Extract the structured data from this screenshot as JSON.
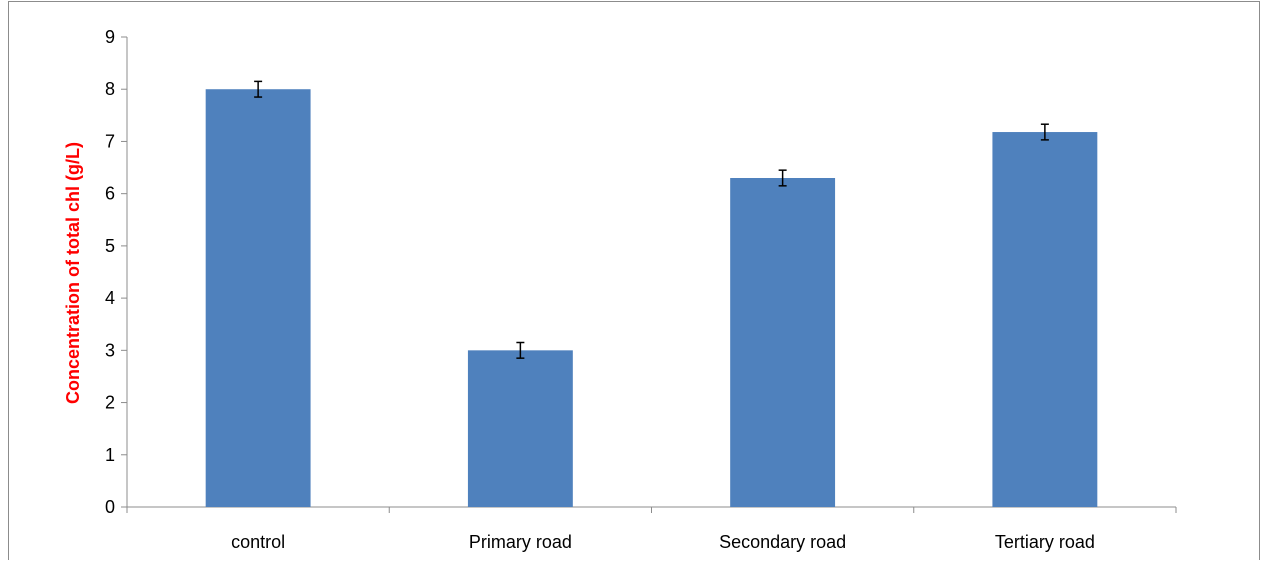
{
  "chart_data": {
    "type": "bar",
    "categories": [
      "control",
      "Primary road",
      "Secondary road",
      "Tertiary road"
    ],
    "values": [
      8.0,
      3.0,
      6.3,
      7.18
    ],
    "error": [
      0.15,
      0.15,
      0.15,
      0.15
    ],
    "title": "",
    "xlabel": "",
    "ylabel": "Concentration of total chl (g/L)",
    "ylim": [
      0,
      9
    ],
    "yticks": [
      "0",
      "1",
      "2",
      "3",
      "4",
      "5",
      "6",
      "7",
      "8",
      "9"
    ],
    "grid": false,
    "legend": "none",
    "colors": {
      "bar": "#4f81bd",
      "ylabel": "#ff0000",
      "axis": "#8c8c8c",
      "errorbar": "#000000"
    }
  }
}
